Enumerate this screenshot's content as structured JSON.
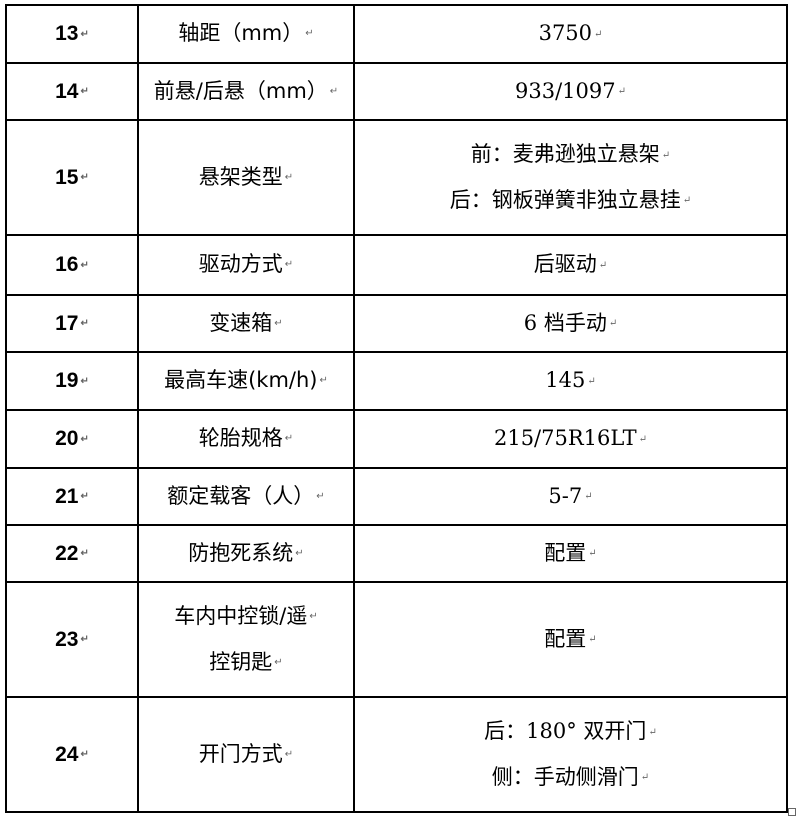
{
  "rows": [
    {
      "no": "13",
      "name": [
        "轴距（mm）"
      ],
      "value": [
        "3750"
      ]
    },
    {
      "no": "14",
      "name": [
        "前悬/后悬（mm）"
      ],
      "value": [
        "933/1097"
      ]
    },
    {
      "no": "15",
      "name": [
        "悬架类型"
      ],
      "value": [
        "前：麦弗逊独立悬架",
        "后：钢板弹簧非独立悬挂"
      ]
    },
    {
      "no": "16",
      "name": [
        "驱动方式"
      ],
      "value": [
        "后驱动"
      ]
    },
    {
      "no": "17",
      "name": [
        "变速箱"
      ],
      "value": [
        "6 档手动"
      ]
    },
    {
      "no": "19",
      "name": [
        "最高车速(km/h)"
      ],
      "value": [
        "145"
      ]
    },
    {
      "no": "20",
      "name": [
        "轮胎规格"
      ],
      "value": [
        "215/75R16LT"
      ]
    },
    {
      "no": "21",
      "name": [
        "额定载客（人）"
      ],
      "value": [
        "5-7"
      ]
    },
    {
      "no": "22",
      "name": [
        "防抱死系统"
      ],
      "value": [
        "配置"
      ]
    },
    {
      "no": "23",
      "name": [
        "车内中控锁/遥",
        "控钥匙"
      ],
      "value": [
        "配置"
      ]
    },
    {
      "no": "24",
      "name": [
        "开门方式"
      ],
      "value": [
        "后：180° 双开门",
        "侧：手动侧滑门"
      ]
    }
  ]
}
